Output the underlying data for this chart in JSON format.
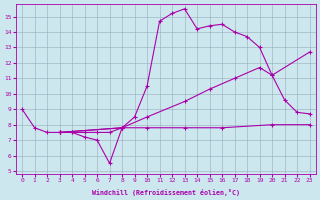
{
  "xlabel": "Windchill (Refroidissement éolien,°C)",
  "xlim": [
    -0.5,
    23.5
  ],
  "ylim": [
    4.8,
    15.8
  ],
  "yticks": [
    5,
    6,
    7,
    8,
    9,
    10,
    11,
    12,
    13,
    14,
    15
  ],
  "xticks": [
    0,
    1,
    2,
    3,
    4,
    5,
    6,
    7,
    8,
    9,
    10,
    11,
    12,
    13,
    14,
    15,
    16,
    17,
    18,
    19,
    20,
    21,
    22,
    23
  ],
  "bg_color": "#cce8ee",
  "line_color": "#aa00aa",
  "grid_color": "#99aabb",
  "line1_x": [
    0,
    1,
    2,
    3,
    4,
    5,
    6,
    7,
    8
  ],
  "line1_y": [
    9.0,
    7.8,
    7.5,
    7.5,
    7.5,
    7.2,
    7.0,
    5.5,
    7.8
  ],
  "line2_x": [
    3,
    4,
    5,
    6,
    7,
    8,
    9,
    10,
    11,
    12,
    13,
    14,
    15,
    16,
    17,
    18,
    19,
    20,
    21,
    22,
    23
  ],
  "line2_y": [
    7.5,
    7.5,
    7.5,
    7.5,
    7.5,
    7.8,
    8.5,
    10.5,
    14.7,
    15.2,
    15.5,
    14.2,
    14.4,
    14.5,
    14.0,
    13.7,
    13.0,
    11.2,
    9.6,
    8.8,
    8.7
  ],
  "line3_x": [
    3,
    8,
    10,
    13,
    15,
    17,
    19,
    20,
    23
  ],
  "line3_y": [
    7.5,
    7.8,
    8.5,
    9.5,
    10.3,
    11.0,
    11.7,
    11.2,
    12.7
  ],
  "line4_x": [
    3,
    8,
    10,
    13,
    16,
    20,
    23
  ],
  "line4_y": [
    7.5,
    7.8,
    7.8,
    7.8,
    7.8,
    8.0,
    8.0
  ]
}
